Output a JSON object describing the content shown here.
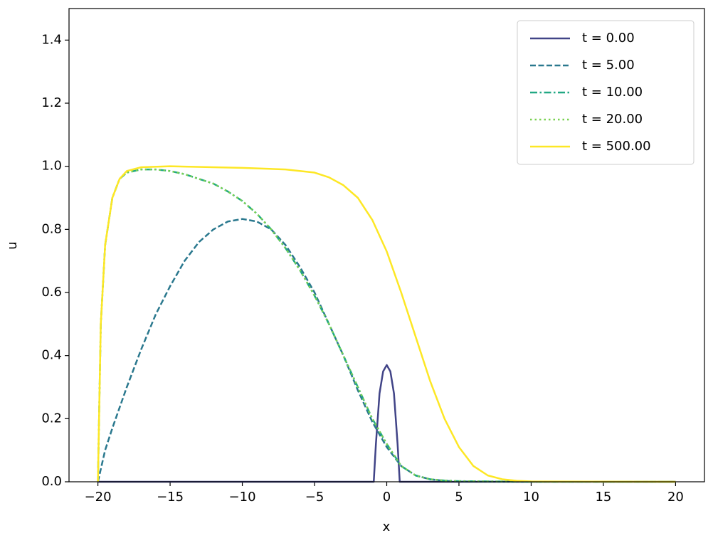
{
  "chart_data": {
    "type": "line",
    "xlabel": "x",
    "ylabel": "u",
    "xlim": [
      -22,
      22
    ],
    "ylim": [
      0,
      1.5
    ],
    "xticks": [
      {
        "value": -20,
        "label": "−20"
      },
      {
        "value": -15,
        "label": "−15"
      },
      {
        "value": -10,
        "label": "−10"
      },
      {
        "value": -5,
        "label": "−5"
      },
      0,
      5,
      10,
      15,
      20
    ],
    "yticks": [
      {
        "value": 0,
        "label": "0.0"
      },
      0.2,
      0.4,
      0.6,
      0.8,
      {
        "value": 1,
        "label": "1.0"
      },
      1.2,
      1.4
    ],
    "legend": "upper right",
    "series": [
      {
        "name": "t = 0.00",
        "color": "#414487",
        "linestyle": "solid",
        "x": [
          -20,
          -1,
          -0.9,
          -0.75,
          -0.5,
          -0.25,
          0,
          0.25,
          0.5,
          0.75,
          0.9,
          1,
          20
        ],
        "values": [
          0,
          0,
          0,
          0.12,
          0.28,
          0.35,
          0.37,
          0.35,
          0.28,
          0.12,
          0,
          0,
          0
        ]
      },
      {
        "name": "t = 5.00",
        "color": "#2a788e",
        "linestyle": "dashed",
        "x": [
          -20,
          -19.5,
          -19,
          -18,
          -17,
          -16,
          -15,
          -14,
          -13,
          -12,
          -11,
          -10,
          -9,
          -8,
          -7,
          -6,
          -5,
          -4,
          -3,
          -2,
          -1,
          0,
          1,
          2,
          3,
          4,
          5,
          10,
          20
        ],
        "values": [
          0,
          0.1,
          0.17,
          0.3,
          0.42,
          0.53,
          0.62,
          0.7,
          0.76,
          0.8,
          0.825,
          0.833,
          0.825,
          0.8,
          0.75,
          0.68,
          0.6,
          0.5,
          0.4,
          0.29,
          0.19,
          0.11,
          0.05,
          0.02,
          0.008,
          0.003,
          0.001,
          0,
          0
        ]
      },
      {
        "name": "t = 10.00",
        "color": "#22a884",
        "linestyle": "dashdot",
        "x": [
          -20,
          -19.8,
          -19.5,
          -19,
          -18.5,
          -18,
          -17,
          -16,
          -15,
          -14,
          -13,
          -12,
          -11,
          -10,
          -9,
          -8,
          -7,
          -6,
          -5,
          -4,
          -3,
          -2,
          -1,
          0,
          1,
          2,
          3,
          4,
          5,
          10,
          20
        ],
        "values": [
          0,
          0.5,
          0.75,
          0.9,
          0.96,
          0.98,
          0.99,
          0.99,
          0.985,
          0.975,
          0.96,
          0.945,
          0.92,
          0.89,
          0.85,
          0.8,
          0.74,
          0.67,
          0.59,
          0.5,
          0.4,
          0.3,
          0.2,
          0.12,
          0.05,
          0.02,
          0.008,
          0.004,
          0.002,
          0,
          0
        ]
      },
      {
        "name": "t = 20.00",
        "color": "#7ad151",
        "linestyle": "dotted",
        "x": [
          -20,
          -19.8,
          -19.5,
          -19,
          -18.5,
          -18,
          -17,
          -16,
          -15,
          -14,
          -13,
          -12,
          -11,
          -10,
          -9,
          -8,
          -7,
          -6,
          -5,
          -4,
          -3,
          -2,
          -1,
          0,
          1,
          2,
          3,
          4,
          5,
          10,
          20
        ],
        "values": [
          0,
          0.5,
          0.75,
          0.9,
          0.96,
          0.98,
          0.99,
          0.99,
          0.985,
          0.975,
          0.96,
          0.945,
          0.92,
          0.89,
          0.85,
          0.8,
          0.74,
          0.67,
          0.59,
          0.5,
          0.4,
          0.3,
          0.2,
          0.12,
          0.05,
          0.02,
          0.008,
          0.004,
          0.002,
          0,
          0
        ]
      },
      {
        "name": "t = 500.00",
        "color": "#fde725",
        "linestyle": "solid",
        "x": [
          -20,
          -19.8,
          -19.5,
          -19,
          -18.5,
          -18,
          -17,
          -15,
          -10,
          -7,
          -5,
          -4,
          -3,
          -2,
          -1,
          0,
          1,
          2,
          3,
          4,
          5,
          6,
          7,
          8,
          9,
          10,
          20
        ],
        "values": [
          0,
          0.5,
          0.75,
          0.9,
          0.96,
          0.985,
          0.997,
          1.0,
          0.995,
          0.99,
          0.98,
          0.965,
          0.94,
          0.9,
          0.83,
          0.73,
          0.6,
          0.46,
          0.32,
          0.2,
          0.11,
          0.05,
          0.02,
          0.008,
          0.003,
          0.001,
          0
        ]
      }
    ]
  }
}
